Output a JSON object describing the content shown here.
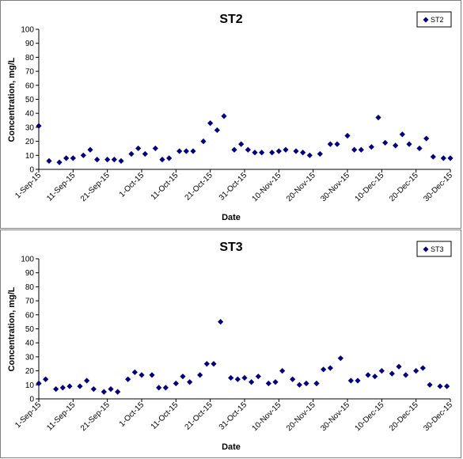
{
  "chart_data": [
    {
      "type": "scatter",
      "title": "ST2",
      "xlabel": "Date",
      "ylabel": "Concentration, mg/L",
      "ylim": [
        0,
        100
      ],
      "yticks": [
        "0",
        "10",
        "20",
        "30",
        "40",
        "50",
        "60",
        "70",
        "80",
        "90",
        "100"
      ],
      "xlim": [
        "2015-09-01",
        "2015-12-30"
      ],
      "xtick_labels": [
        "1-Sep-15",
        "11-Sep-15",
        "21-Sep-15",
        "1-Oct-15",
        "11-Oct-15",
        "21-Oct-15",
        "31-Oct-15",
        "10-Nov-15",
        "20-Nov-15",
        "30-Nov-15",
        "10-Dec-15",
        "20-Dec-15",
        "30-Dec-15"
      ],
      "legend_position": "top-right",
      "marker_color": "#000080",
      "series": [
        {
          "name": "ST2",
          "points": [
            [
              "2015-09-01",
              31
            ],
            [
              "2015-09-04",
              6
            ],
            [
              "2015-09-07",
              5
            ],
            [
              "2015-09-09",
              8
            ],
            [
              "2015-09-11",
              8
            ],
            [
              "2015-09-14",
              10
            ],
            [
              "2015-09-16",
              14
            ],
            [
              "2015-09-18",
              7
            ],
            [
              "2015-09-21",
              7
            ],
            [
              "2015-09-23",
              7
            ],
            [
              "2015-09-25",
              6
            ],
            [
              "2015-09-28",
              11
            ],
            [
              "2015-09-30",
              15
            ],
            [
              "2015-10-02",
              11
            ],
            [
              "2015-10-05",
              15
            ],
            [
              "2015-10-07",
              7
            ],
            [
              "2015-10-09",
              8
            ],
            [
              "2015-10-12",
              13
            ],
            [
              "2015-10-14",
              13
            ],
            [
              "2015-10-16",
              13
            ],
            [
              "2015-10-19",
              20
            ],
            [
              "2015-10-21",
              33
            ],
            [
              "2015-10-23",
              28
            ],
            [
              "2015-10-25",
              38
            ],
            [
              "2015-10-28",
              14
            ],
            [
              "2015-10-30",
              18
            ],
            [
              "2015-11-01",
              14
            ],
            [
              "2015-11-03",
              12
            ],
            [
              "2015-11-05",
              12
            ],
            [
              "2015-11-08",
              12
            ],
            [
              "2015-11-10",
              13
            ],
            [
              "2015-11-12",
              14
            ],
            [
              "2015-11-15",
              13
            ],
            [
              "2015-11-17",
              12
            ],
            [
              "2015-11-19",
              10
            ],
            [
              "2015-11-22",
              11
            ],
            [
              "2015-11-25",
              18
            ],
            [
              "2015-11-27",
              18
            ],
            [
              "2015-11-30",
              24
            ],
            [
              "2015-12-02",
              14
            ],
            [
              "2015-12-04",
              14
            ],
            [
              "2015-12-07",
              16
            ],
            [
              "2015-12-09",
              37
            ],
            [
              "2015-12-11",
              19
            ],
            [
              "2015-12-14",
              17
            ],
            [
              "2015-12-16",
              25
            ],
            [
              "2015-12-18",
              18
            ],
            [
              "2015-12-21",
              15
            ],
            [
              "2015-12-23",
              22
            ],
            [
              "2015-12-25",
              9
            ],
            [
              "2015-12-28",
              8
            ],
            [
              "2015-12-30",
              8
            ]
          ]
        }
      ]
    },
    {
      "type": "scatter",
      "title": "ST3",
      "xlabel": "Date",
      "ylabel": "Concentration, mg/L",
      "ylim": [
        0,
        100
      ],
      "yticks": [
        "0",
        "10",
        "20",
        "30",
        "40",
        "50",
        "60",
        "70",
        "80",
        "90",
        "100"
      ],
      "xlim": [
        "2015-09-01",
        "2015-12-30"
      ],
      "xtick_labels": [
        "1-Sep-15",
        "11-Sep-15",
        "21-Sep-15",
        "1-Oct-15",
        "11-Oct-15",
        "21-Oct-15",
        "31-Oct-15",
        "10-Nov-15",
        "20-Nov-15",
        "30-Nov-15",
        "10-Dec-15",
        "20-Dec-15",
        "30-Dec-15"
      ],
      "legend_position": "top-right",
      "marker_color": "#000080",
      "series": [
        {
          "name": "ST3",
          "points": [
            [
              "2015-09-01",
              11
            ],
            [
              "2015-09-03",
              14
            ],
            [
              "2015-09-06",
              7
            ],
            [
              "2015-09-08",
              8
            ],
            [
              "2015-09-10",
              9
            ],
            [
              "2015-09-13",
              9
            ],
            [
              "2015-09-15",
              13
            ],
            [
              "2015-09-17",
              7
            ],
            [
              "2015-09-20",
              5
            ],
            [
              "2015-09-22",
              7
            ],
            [
              "2015-09-24",
              5
            ],
            [
              "2015-09-27",
              14
            ],
            [
              "2015-09-29",
              19
            ],
            [
              "2015-10-01",
              17
            ],
            [
              "2015-10-04",
              17
            ],
            [
              "2015-10-06",
              8
            ],
            [
              "2015-10-08",
              8
            ],
            [
              "2015-10-11",
              11
            ],
            [
              "2015-10-13",
              16
            ],
            [
              "2015-10-15",
              12
            ],
            [
              "2015-10-18",
              17
            ],
            [
              "2015-10-20",
              25
            ],
            [
              "2015-10-22",
              25
            ],
            [
              "2015-10-24",
              55
            ],
            [
              "2015-10-27",
              15
            ],
            [
              "2015-10-29",
              14
            ],
            [
              "2015-10-31",
              15
            ],
            [
              "2015-11-02",
              12
            ],
            [
              "2015-11-04",
              16
            ],
            [
              "2015-11-07",
              11
            ],
            [
              "2015-11-09",
              12
            ],
            [
              "2015-11-11",
              20
            ],
            [
              "2015-11-14",
              14
            ],
            [
              "2015-11-16",
              10
            ],
            [
              "2015-11-18",
              11
            ],
            [
              "2015-11-21",
              11
            ],
            [
              "2015-11-23",
              21
            ],
            [
              "2015-11-25",
              22
            ],
            [
              "2015-11-28",
              29
            ],
            [
              "2015-12-01",
              13
            ],
            [
              "2015-12-03",
              13
            ],
            [
              "2015-12-06",
              17
            ],
            [
              "2015-12-08",
              16
            ],
            [
              "2015-12-10",
              20
            ],
            [
              "2015-12-13",
              18
            ],
            [
              "2015-12-15",
              23
            ],
            [
              "2015-12-17",
              17
            ],
            [
              "2015-12-20",
              20
            ],
            [
              "2015-12-22",
              22
            ],
            [
              "2015-12-24",
              10
            ],
            [
              "2015-12-27",
              9
            ],
            [
              "2015-12-29",
              9
            ]
          ]
        }
      ]
    }
  ]
}
